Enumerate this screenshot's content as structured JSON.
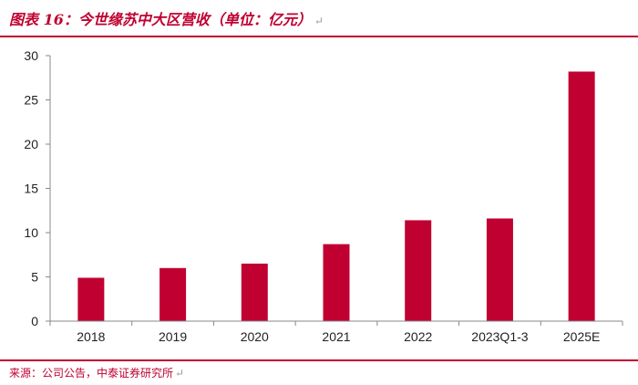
{
  "header": {
    "title": "图表 16：今世缘苏中大区营收（单位：亿元）",
    "return_mark": "↵"
  },
  "footer": {
    "source": "来源：公司公告，中泰证券研究所",
    "return_mark": "↵"
  },
  "colors": {
    "accent": "#c00030",
    "bar": "#c00030",
    "axis": "#888888"
  },
  "chart_data": {
    "type": "bar",
    "categories": [
      "2018",
      "2019",
      "2020",
      "2021",
      "2022",
      "2023Q1-3",
      "2025E"
    ],
    "values": [
      4.9,
      6.0,
      6.5,
      8.7,
      11.4,
      11.6,
      28.2
    ],
    "ylim": [
      0,
      30
    ],
    "yticks": [
      0,
      5,
      10,
      15,
      20,
      25,
      30
    ],
    "grid": false,
    "legend": "none"
  }
}
